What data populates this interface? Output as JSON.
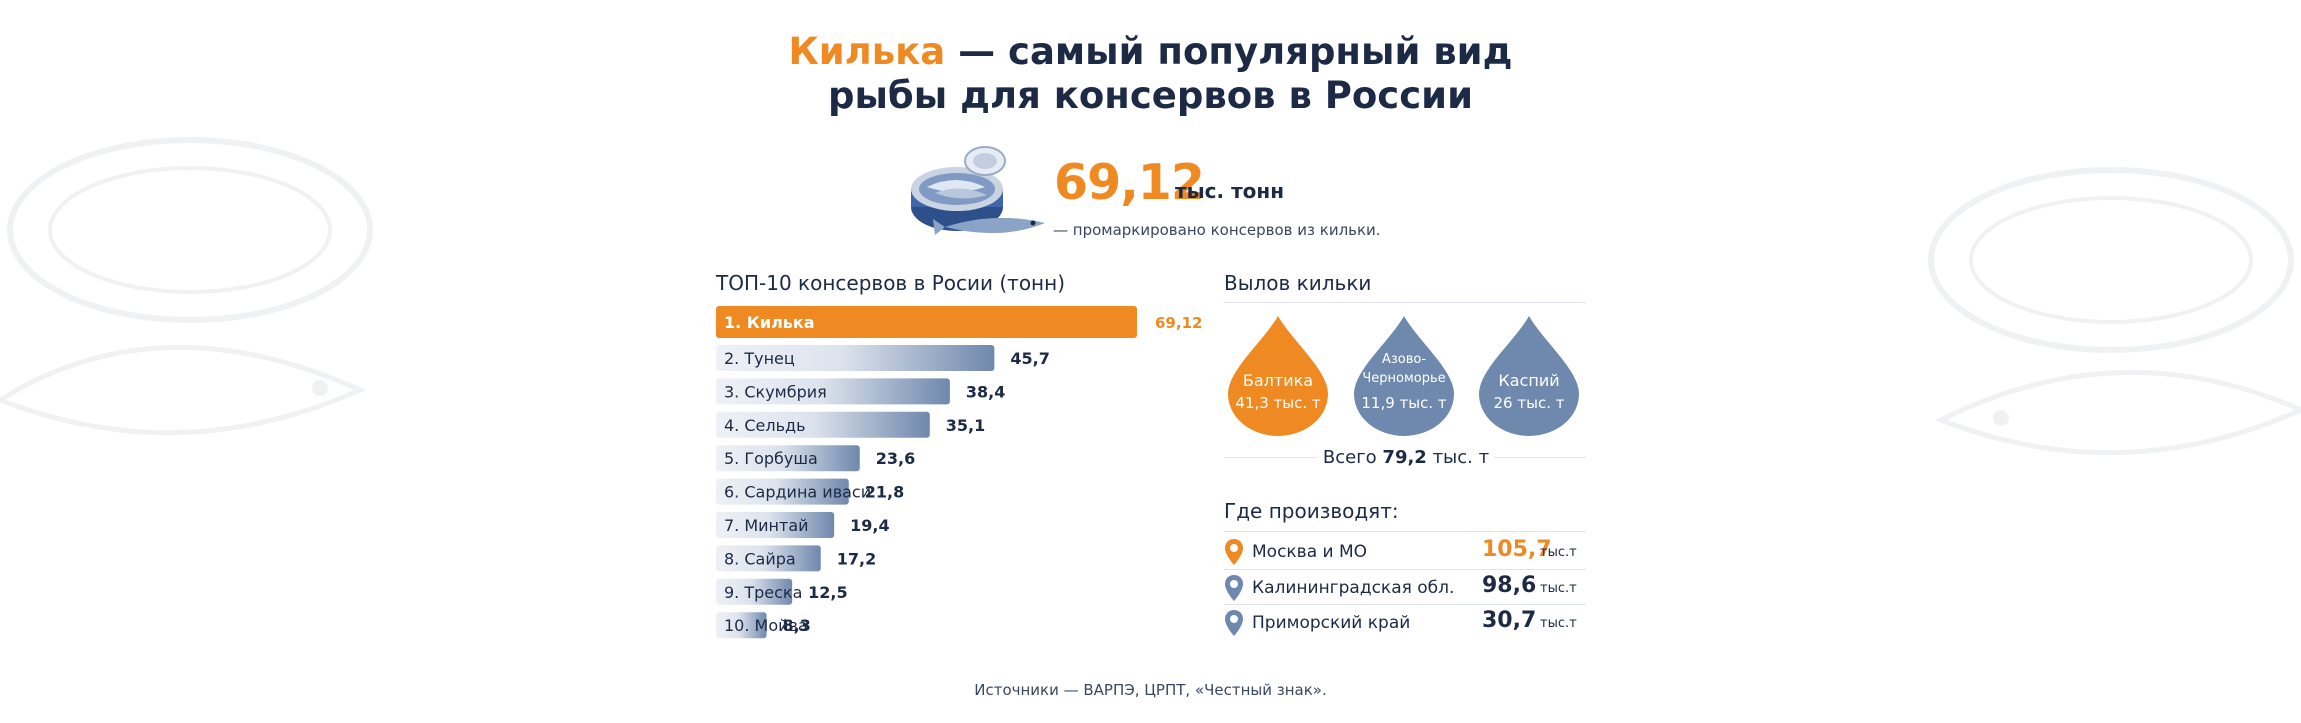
{
  "header": {
    "title_accent": "Килька",
    "title_rest": " — самый популярный вид",
    "title_line2": "рыбы для консервов в России"
  },
  "hero": {
    "value": "69,12",
    "unit": "тыс. тонн",
    "caption": "— промаркировано консервов из кильки.",
    "icon": "canned-fish-icon"
  },
  "chart_data": {
    "type": "bar",
    "orientation": "horizontal",
    "title": "ТОП-10 консервов в Росии (тонн)",
    "categories": [
      "1. Килька",
      "2. Тунец",
      "3. Скумбрия",
      "4. Сельдь",
      "5. Горбуша",
      "6. Сардина иваси",
      "7. Минтай",
      "8. Сайра",
      "9. Треска",
      "10. Мойва"
    ],
    "values": [
      69.12,
      45.7,
      38.4,
      35.1,
      23.6,
      21.8,
      19.4,
      17.2,
      12.5,
      8.3
    ],
    "value_labels": [
      "69,12",
      "45,7",
      "38,4",
      "35,1",
      "23,6",
      "21,8",
      "19,4",
      "17,2",
      "12,5",
      "8,3"
    ],
    "xlim": [
      0,
      69.12
    ],
    "highlight_color": "#ef8a22",
    "bar_color": "#6f88ad"
  },
  "catch": {
    "title": "Вылов кильки",
    "regions": [
      {
        "name": "Балтика",
        "value": "41,3 тыс. т",
        "color": "#ef8a22"
      },
      {
        "name": "Азово-Черноморье",
        "value": "11,9 тыс. т",
        "color": "#6f88ad"
      },
      {
        "name": "Каспий",
        "value": "26 тыс. т",
        "color": "#6f88ad"
      }
    ],
    "total_prefix": "Всего ",
    "total_value": "79,2",
    "total_suffix": " тыс. т"
  },
  "production": {
    "title": "Где производят:",
    "items": [
      {
        "name": "Москва и МО",
        "value": "105,7",
        "unit": "тыс.т"
      },
      {
        "name": "Калининградская обл.",
        "value": "98,6",
        "unit": "тыс.т"
      },
      {
        "name": "Приморский край",
        "value": "30,7",
        "unit": "тыс.т"
      }
    ]
  },
  "footer": {
    "sources": "Источники — ВАРПЭ, ЦРПТ, «Честный знак»."
  },
  "colors": {
    "accent": "#ef8a22",
    "navy": "#1c2a45",
    "steel": "#6f88ad"
  }
}
